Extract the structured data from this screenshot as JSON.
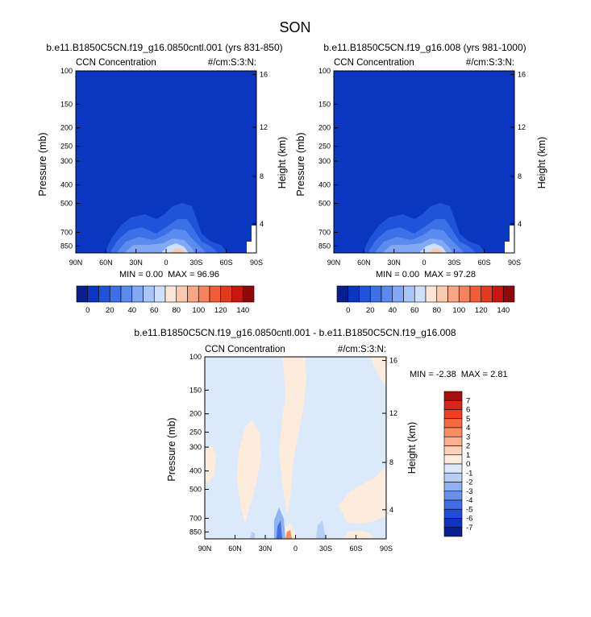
{
  "page_title": "SON",
  "colors": {
    "panel_fill": "#0a37c2",
    "background": "#ffffff"
  },
  "chart_data": [
    {
      "type": "heatmap",
      "title": "b.e11.B1850C5CN.f19_g16.0850cntl.001 (yrs 831-850)",
      "left_label": "CCN Concentration",
      "right_label": "#/cm:S:3:N:",
      "xlabel": "",
      "ylabel": "Pressure (mb)",
      "ylabel_right": "Height (km)",
      "x_ticks": [
        "90N",
        "60N",
        "30N",
        "0",
        "30S",
        "60S",
        "90S"
      ],
      "y_ticks": [
        "100",
        "150",
        "200",
        "250",
        "300",
        "400",
        "500",
        "700",
        "850"
      ],
      "y_ticks_right": [
        "16",
        "12",
        "8",
        "4"
      ],
      "min": "0.00",
      "max": "96.96",
      "colorbar_ticks": [
        "0",
        "20",
        "40",
        "60",
        "80",
        "100",
        "120",
        "140"
      ],
      "colorbar_colors": [
        "#0a1f8f",
        "#0a37c2",
        "#1f53d9",
        "#3d6fe6",
        "#5b8bef",
        "#82a9f5",
        "#a9c6fa",
        "#d0e0fc",
        "#fde6d6",
        "#fbc9ad",
        "#f8a683",
        "#f5825c",
        "#ef5c37",
        "#e43a1c",
        "#c9160f",
        "#8e0a0a"
      ]
    },
    {
      "type": "heatmap",
      "title": "b.e11.B1850C5CN.f19_g16.008 (yrs 981-1000)",
      "left_label": "CCN Concentration",
      "right_label": "#/cm:S:3:N:",
      "xlabel": "",
      "ylabel": "Pressure (mb)",
      "ylabel_right": "Height (km)",
      "x_ticks": [
        "90N",
        "60N",
        "30N",
        "0",
        "30S",
        "60S",
        "90S"
      ],
      "y_ticks": [
        "100",
        "150",
        "200",
        "250",
        "300",
        "400",
        "500",
        "700",
        "850"
      ],
      "y_ticks_right": [
        "16",
        "12",
        "8",
        "4"
      ],
      "min": "0.00",
      "max": "97.28",
      "colorbar_ticks": [
        "0",
        "20",
        "40",
        "60",
        "80",
        "100",
        "120",
        "140"
      ],
      "colorbar_colors": [
        "#0a1f8f",
        "#0a37c2",
        "#1f53d9",
        "#3d6fe6",
        "#5b8bef",
        "#82a9f5",
        "#a9c6fa",
        "#d0e0fc",
        "#fde6d6",
        "#fbc9ad",
        "#f8a683",
        "#f5825c",
        "#ef5c37",
        "#e43a1c",
        "#c9160f",
        "#8e0a0a"
      ]
    },
    {
      "type": "heatmap",
      "title": "b.e11.B1850C5CN.f19_g16.0850cntl.001 - b.e11.B1850C5CN.f19_g16.008",
      "left_label": "CCN Concentration",
      "right_label": "#/cm:S:3:N:",
      "xlabel": "",
      "ylabel": "Pressure (mb)",
      "ylabel_right": "Height (km)",
      "x_ticks": [
        "90N",
        "60N",
        "30N",
        "0",
        "30S",
        "60S",
        "90S"
      ],
      "y_ticks": [
        "100",
        "150",
        "200",
        "250",
        "300",
        "400",
        "500",
        "700",
        "850"
      ],
      "y_ticks_right": [
        "16",
        "12",
        "8",
        "4"
      ],
      "min": "-2.38",
      "max": "2.81",
      "colorbar_ticks": [
        "7",
        "6",
        "5",
        "4",
        "3",
        "2",
        "1",
        "0",
        "-1",
        "-2",
        "-3",
        "-4",
        "-5",
        "-6",
        "-7"
      ],
      "colorbar_colors": [
        "#a50f0f",
        "#d7261c",
        "#f0401f",
        "#f86a3c",
        "#fb8e63",
        "#fdb08f",
        "#fed0b8",
        "#fdebdc",
        "#dbe9fb",
        "#b7cff7",
        "#90b2f2",
        "#6a91ec",
        "#3f6ee6",
        "#1f4fd8",
        "#0e33c0",
        "#0a1f8f"
      ]
    }
  ]
}
